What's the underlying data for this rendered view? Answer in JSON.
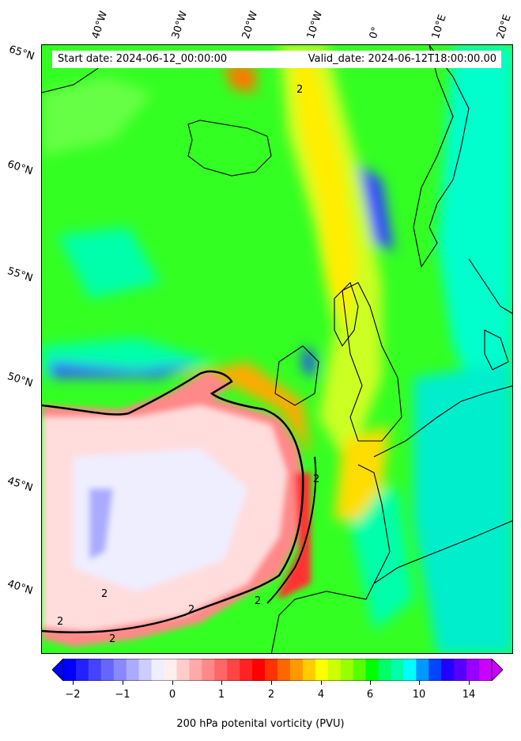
{
  "header": {
    "start_date": "Start date: 2024-06-12_00:00:00",
    "valid_date": "Valid_date: 2024-06-12T18:00:00.00"
  },
  "longitude_labels": [
    "40°W",
    "30°W",
    "20°W",
    "10°W",
    "0°",
    "10°E",
    "20°E"
  ],
  "latitude_labels": [
    "65°N",
    "60°N",
    "55°N",
    "50°N",
    "45°N",
    "40°N"
  ],
  "contour_label": "2",
  "colorbar": {
    "title": "200 hPa potenital vorticity (PVU)",
    "ticks": [
      "−2",
      "−1",
      "0",
      "1",
      "2",
      "4",
      "6",
      "10",
      "14"
    ],
    "colors": [
      "#0000ff",
      "#2222ff",
      "#4444ff",
      "#6666ff",
      "#8888ff",
      "#aaaaff",
      "#ccccff",
      "#eeeeff",
      "#ffeeee",
      "#ffcccc",
      "#ffaaaa",
      "#ff8888",
      "#ff6666",
      "#ff4444",
      "#ff2222",
      "#ff0000",
      "#ff3300",
      "#ff6600",
      "#ff9900",
      "#ffcc00",
      "#ffff00",
      "#ccff00",
      "#99ff00",
      "#55ff00",
      "#00ff00",
      "#00ff66",
      "#00ffaa",
      "#00ffff",
      "#0099ff",
      "#0044ff",
      "#2200ff",
      "#5500ff",
      "#9900ff",
      "#cc00ff"
    ],
    "under_color": "#0000ff",
    "over_color": "#cc00ff"
  }
}
